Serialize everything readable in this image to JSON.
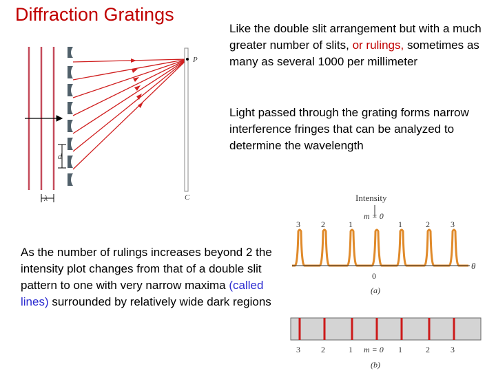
{
  "title": "Diffraction Gratings",
  "para1": {
    "before": "Like the double slit arrangement but with a much greater number of slits, ",
    "highlight": "or rulings,",
    "after": " sometimes as many as several 1000 per millimeter"
  },
  "para2": "Light passed through the grating forms narrow interference fringes that can be analyzed to determine the wavelength",
  "para3": {
    "before": "As the number of rulings increases beyond 2 the intensity plot changes from that of a double slit pattern to one with very narrow maxima ",
    "highlight": "(called lines)",
    "after": " surrounded by relatively wide dark regions"
  },
  "grating_figure": {
    "label_p": "P",
    "label_c": "C",
    "label_d": "d",
    "label_lambda": "λ"
  },
  "intensity_figure": {
    "axis_label": "Intensity",
    "theta_label": "θ",
    "center_label": "m = 0",
    "zero_label": "0",
    "order_labels": [
      "3",
      "2",
      "1",
      "1",
      "2",
      "3"
    ],
    "panel_a": "(a)",
    "panel_b": "(b)",
    "bottom_labels": [
      "3",
      "2",
      "1",
      "m = 0",
      "1",
      "2",
      "3"
    ],
    "colors": {
      "peak": "#e08a2a",
      "line": "#cc1a1a",
      "band": "#d4d4d4"
    }
  }
}
